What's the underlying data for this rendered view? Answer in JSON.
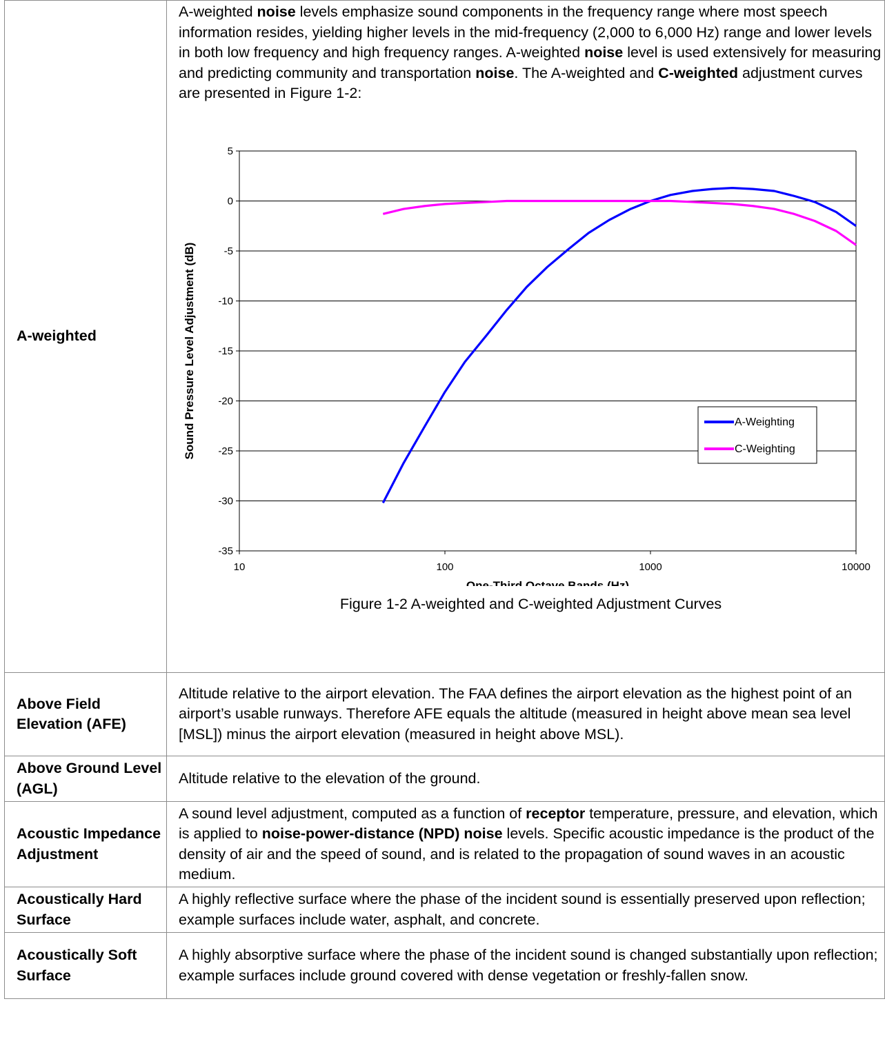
{
  "rows": [
    {
      "term": "A-weighted",
      "definition": [
        {
          "t": "A-weighted ",
          "b": false
        },
        {
          "t": "noise",
          "b": true
        },
        {
          "t": " levels emphasize sound components in the frequency range where most speech information resides, yielding higher levels in the mid-frequency (2,000 to 6,000 Hz) range and lower levels in both low frequency and high frequency ranges. A-weighted ",
          "b": false
        },
        {
          "t": "noise",
          "b": true
        },
        {
          "t": " level is used extensively for measuring and predicting community and transportation ",
          "b": false
        },
        {
          "t": "noise",
          "b": true
        },
        {
          "t": ". The A-weighted and ",
          "b": false
        },
        {
          "t": "C-weighted",
          "b": true
        },
        {
          "t": " adjustment curves are presented in Figure 1-2:",
          "b": false
        }
      ],
      "caption": "Figure 1-2 A-weighted and C-weighted Adjustment Curves"
    },
    {
      "term": "Above Field Elevation (AFE)",
      "definition": [
        {
          "t": "Altitude relative to the airport elevation. The FAA defines the airport elevation as the highest point of an airport’s usable runways.  Therefore AFE equals the altitude (measured in height above mean sea level [MSL]) minus the airport elevation (measured in height above MSL).",
          "b": false
        }
      ]
    },
    {
      "term": "Above Ground Level (AGL)",
      "definition": [
        {
          "t": "Altitude relative to the elevation of the ground.",
          "b": false
        }
      ]
    },
    {
      "term": "Acoustic Impedance Adjustment",
      "definition": [
        {
          "t": "A sound level adjustment, computed as a function of ",
          "b": false
        },
        {
          "t": "receptor",
          "b": true
        },
        {
          "t": " temperature, pressure, and elevation, which is applied to ",
          "b": false
        },
        {
          "t": "noise-power-distance (NPD) noise",
          "b": true
        },
        {
          "t": " levels. Specific acoustic impedance is the product of the density of air and the speed of sound, and is related to the propagation of sound waves in an acoustic medium.",
          "b": false
        }
      ]
    },
    {
      "term": "Acoustically Hard Surface",
      "definition": [
        {
          "t": "A highly reflective surface where the phase of the incident sound is essentially preserved upon reflection; example surfaces include water, asphalt, and concrete.",
          "b": false
        }
      ]
    },
    {
      "term": "Acoustically Soft Surface",
      "definition": [
        {
          "t": "A highly absorptive surface where the phase of the incident sound is changed substantially upon reflection; example surfaces include ground covered with dense vegetation or freshly-fallen snow.",
          "b": false
        }
      ]
    }
  ],
  "chart_data": {
    "type": "line",
    "title": "",
    "xlabel": "One-Third Octave Bands (Hz)",
    "ylabel": "Sound Pressure Level Adjustment (dB)",
    "xscale": "log",
    "xlim": [
      10,
      10000
    ],
    "ylim": [
      -35,
      5
    ],
    "xticks": [
      "10",
      "100",
      "1000",
      "10000"
    ],
    "yticks": [
      "5",
      "0",
      "-5",
      "-10",
      "-15",
      "-20",
      "-25",
      "-30",
      "-35"
    ],
    "grid": "horizontal",
    "legend_position": "lower-right",
    "series": [
      {
        "name": "A-Weighting",
        "color": "#0000ff",
        "x": [
          50,
          63,
          80,
          100,
          125,
          160,
          200,
          250,
          315,
          400,
          500,
          630,
          800,
          1000,
          1250,
          1600,
          2000,
          2500,
          3150,
          4000,
          5000,
          6300,
          8000,
          10000
        ],
        "y": [
          -30.2,
          -26.2,
          -22.5,
          -19.1,
          -16.1,
          -13.4,
          -10.9,
          -8.6,
          -6.6,
          -4.8,
          -3.2,
          -1.9,
          -0.8,
          0,
          0.6,
          1.0,
          1.2,
          1.3,
          1.2,
          1.0,
          0.5,
          -0.1,
          -1.1,
          -2.5
        ]
      },
      {
        "name": "C-Weighting",
        "color": "#ff00ff",
        "x": [
          50,
          63,
          80,
          100,
          125,
          160,
          200,
          250,
          315,
          400,
          500,
          630,
          800,
          1000,
          1250,
          1600,
          2000,
          2500,
          3150,
          4000,
          5000,
          6300,
          8000,
          10000
        ],
        "y": [
          -1.3,
          -0.8,
          -0.5,
          -0.3,
          -0.2,
          -0.1,
          0,
          0,
          0,
          0,
          0,
          0,
          0,
          0,
          0,
          -0.1,
          -0.2,
          -0.3,
          -0.5,
          -0.8,
          -1.3,
          -2.0,
          -3.0,
          -4.4
        ]
      }
    ]
  }
}
